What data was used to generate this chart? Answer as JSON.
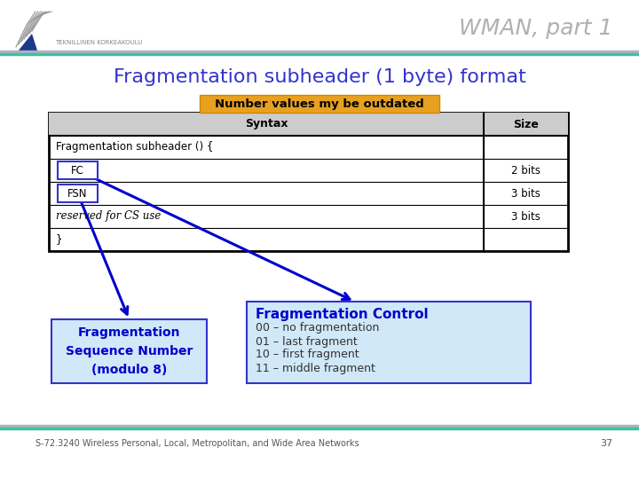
{
  "title": "WMAN, part 1",
  "slide_title": "Fragmentation subheader (1 byte) format",
  "warning_label": "Number values my be outdated",
  "table_header": [
    "Syntax",
    "Size"
  ],
  "box_fsn_label": "Fragmentation\nSequence Number\n(modulo 8)",
  "box_fc_title": "Fragmentation Control",
  "box_fc_items": [
    "00 – no fragmentation",
    "01 – last fragment",
    "10 – first fragment",
    "11 – middle fragment"
  ],
  "footer_text": "S-72.3240 Wireless Personal, Local, Metropolitan, and Wide Area Networks",
  "footer_page": "37",
  "bg_color": "#ffffff",
  "title_color": "#b0b0b0",
  "slide_title_color": "#3333cc",
  "warning_bg": "#e8a020",
  "warning_text_color": "#000000",
  "table_header_bg": "#cccccc",
  "fc_box_bg": "#d0e8f8",
  "fc_box_border": "#3333cc",
  "fsn_box_bg": "#d0e8f8",
  "fsn_box_border": "#3333cc",
  "fc_box_title_color": "#0000cc",
  "fsn_box_text_color": "#0000cc",
  "arrow_color": "#0000cc",
  "top_line_teal": "#40c0a0",
  "top_line_gray": "#b0b0c0",
  "bottom_line_teal": "#40c0a0",
  "bottom_line_gray": "#b0b0c0"
}
